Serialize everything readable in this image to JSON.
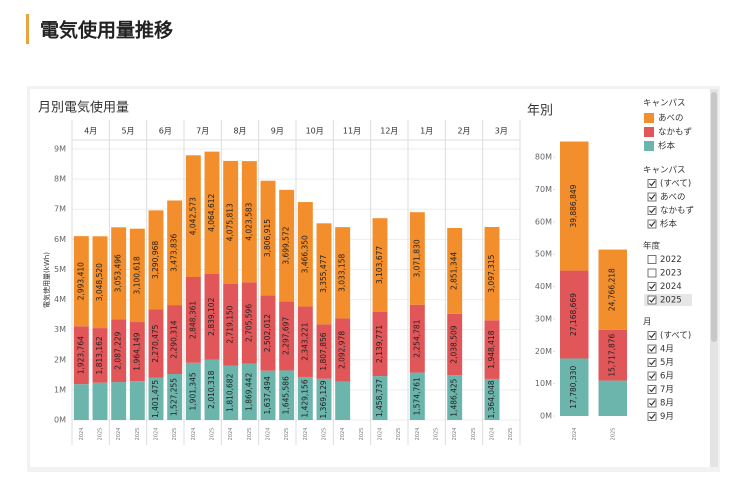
{
  "header": {
    "title": "電気使用量推移"
  },
  "legend": {
    "title": "キャンパス"
  },
  "chart_data": [
    {
      "type": "bar",
      "stacked": true,
      "title": "月別電気使用量",
      "y_label": "電気使用量(kWh)",
      "categories": [
        "4月",
        "5月",
        "6月",
        "7月",
        "8月",
        "9月",
        "10月",
        "11月",
        "12月",
        "1月",
        "2月",
        "3月"
      ],
      "subcategories": [
        "2024",
        "2025"
      ],
      "ylim": [
        0,
        9300000
      ],
      "yticks": [
        {
          "value": 0,
          "label": "0M"
        },
        {
          "value": 1000000,
          "label": "1M"
        },
        {
          "value": 2000000,
          "label": "2M"
        },
        {
          "value": 3000000,
          "label": "3M"
        },
        {
          "value": 4000000,
          "label": "4M"
        },
        {
          "value": 5000000,
          "label": "5M"
        },
        {
          "value": 6000000,
          "label": "6M"
        },
        {
          "value": 7000000,
          "label": "7M"
        },
        {
          "value": 8000000,
          "label": "8M"
        },
        {
          "value": 9000000,
          "label": "9M"
        }
      ],
      "grid": true,
      "series": [
        {
          "name": "あべの",
          "color": "#f28e2b",
          "values": [
            [
              2993410,
              3048520
            ],
            [
              3053496,
              3100618
            ],
            [
              3290968,
              3473836
            ],
            [
              4042573,
              4064612
            ],
            [
              4075813,
              4023583
            ],
            [
              3806915,
              3699572
            ],
            [
              3466350,
              3355477
            ],
            [
              3033158,
              null
            ],
            [
              3103677,
              null
            ],
            [
              3071830,
              null
            ],
            [
              2851344,
              null
            ],
            [
              3097315,
              null
            ]
          ],
          "value_labels": [
            [
              "2,993,410",
              "3,048,520"
            ],
            [
              "3,053,496",
              "3,100,618"
            ],
            [
              "3,290,968",
              "3,473,836"
            ],
            [
              "4,042,573",
              "4,064,612"
            ],
            [
              "4,075,813",
              "4,023,583"
            ],
            [
              "3,806,915",
              "3,699,572"
            ],
            [
              "3,466,350",
              "3,355,477"
            ],
            [
              "3,033,158",
              null
            ],
            [
              "3,103,677",
              null
            ],
            [
              "3,071,830",
              null
            ],
            [
              "2,851,344",
              null
            ],
            [
              "3,097,315",
              null
            ]
          ]
        },
        {
          "name": "なかもず",
          "color": "#e15759",
          "values": [
            [
              1923764,
              1813162
            ],
            [
              2087229,
              1964149
            ],
            [
              2270475,
              2290314
            ],
            [
              2848361,
              2839102
            ],
            [
              2719150,
              2705596
            ],
            [
              2502012,
              2297697
            ],
            [
              2343221,
              1807856
            ],
            [
              2092978,
              null
            ],
            [
              2139771,
              null
            ],
            [
              2254781,
              null
            ],
            [
              2038509,
              null
            ],
            [
              1948418,
              null
            ]
          ],
          "value_labels": [
            [
              "1,923,764",
              "1,813,162"
            ],
            [
              "2,087,229",
              "1,964,149"
            ],
            [
              "2,270,475",
              "2,290,314"
            ],
            [
              "2,848,361",
              "2,839,102"
            ],
            [
              "2,719,150",
              "2,705,596"
            ],
            [
              "2,502,012",
              "2,297,697"
            ],
            [
              "2,343,221",
              "1,807,856"
            ],
            [
              "2,092,978",
              null
            ],
            [
              "2,139,771",
              null
            ],
            [
              "2,254,781",
              null
            ],
            [
              "2,038,509",
              null
            ],
            [
              "1,948,418",
              null
            ]
          ]
        },
        {
          "name": "杉本",
          "color": "#6bb5ac",
          "values": [
            [
              1190000,
              1240000
            ],
            [
              1260000,
              1290000
            ],
            [
              1401475,
              1527255
            ],
            [
              1901345,
              2010318
            ],
            [
              1810682,
              1869442
            ],
            [
              1637494,
              1645586
            ],
            [
              1429156,
              1369129
            ],
            [
              1280000,
              null
            ],
            [
              1458737,
              null
            ],
            [
              1574761,
              null
            ],
            [
              1486425,
              null
            ],
            [
              1364048,
              null
            ]
          ],
          "value_labels": [
            [
              null,
              null
            ],
            [
              null,
              null
            ],
            [
              "1,401,475",
              "1,527,255"
            ],
            [
              "1,901,345",
              "2,010,318"
            ],
            [
              "1,810,682",
              "1,869,442"
            ],
            [
              "1,637,494",
              "1,645,586"
            ],
            [
              "1,429,156",
              "1,369,129"
            ],
            [
              null,
              null
            ],
            [
              "1,458,737",
              null
            ],
            [
              "1,574,761",
              null
            ],
            [
              "1,486,425",
              null
            ],
            [
              "1,364,048",
              null
            ]
          ]
        }
      ]
    },
    {
      "type": "bar",
      "stacked": true,
      "title": "年別",
      "categories": [
        "2024",
        "2025"
      ],
      "ylim": [
        0,
        85000000
      ],
      "yticks": [
        {
          "value": 0,
          "label": "0M"
        },
        {
          "value": 10000000,
          "label": "10M"
        },
        {
          "value": 20000000,
          "label": "20M"
        },
        {
          "value": 30000000,
          "label": "30M"
        },
        {
          "value": 40000000,
          "label": "40M"
        },
        {
          "value": 50000000,
          "label": "50M"
        },
        {
          "value": 60000000,
          "label": "60M"
        },
        {
          "value": 70000000,
          "label": "70M"
        },
        {
          "value": 80000000,
          "label": "80M"
        }
      ],
      "series": [
        {
          "name": "あべの",
          "color": "#f28e2b",
          "values": [
            39886849,
            24766218
          ],
          "value_labels": [
            "39,886,849",
            "24,766,218"
          ]
        },
        {
          "name": "なかもず",
          "color": "#e15759",
          "values": [
            27168669,
            15717876
          ],
          "value_labels": [
            "27,168,669",
            "15,717,876"
          ]
        },
        {
          "name": "杉本",
          "color": "#6bb5ac",
          "values": [
            17780330,
            10950000
          ],
          "value_labels": [
            "17,780,330",
            null
          ]
        }
      ]
    }
  ],
  "filters": [
    {
      "title": "キャンパス",
      "items": [
        {
          "label": "(すべて)",
          "checked": true
        },
        {
          "label": "あべの",
          "checked": true
        },
        {
          "label": "なかもず",
          "checked": true
        },
        {
          "label": "杉本",
          "checked": true
        }
      ]
    },
    {
      "title": "年度",
      "items": [
        {
          "label": "2022",
          "checked": false
        },
        {
          "label": "2023",
          "checked": false
        },
        {
          "label": "2024",
          "checked": true
        },
        {
          "label": "2025",
          "checked": true
        }
      ]
    },
    {
      "title": "月",
      "items": [
        {
          "label": "(すべて)",
          "checked": true
        },
        {
          "label": "4月",
          "checked": true
        },
        {
          "label": "5月",
          "checked": true
        },
        {
          "label": "6月",
          "checked": true
        },
        {
          "label": "7月",
          "checked": true
        },
        {
          "label": "8月",
          "checked": true
        },
        {
          "label": "9月",
          "checked": true
        }
      ]
    }
  ]
}
